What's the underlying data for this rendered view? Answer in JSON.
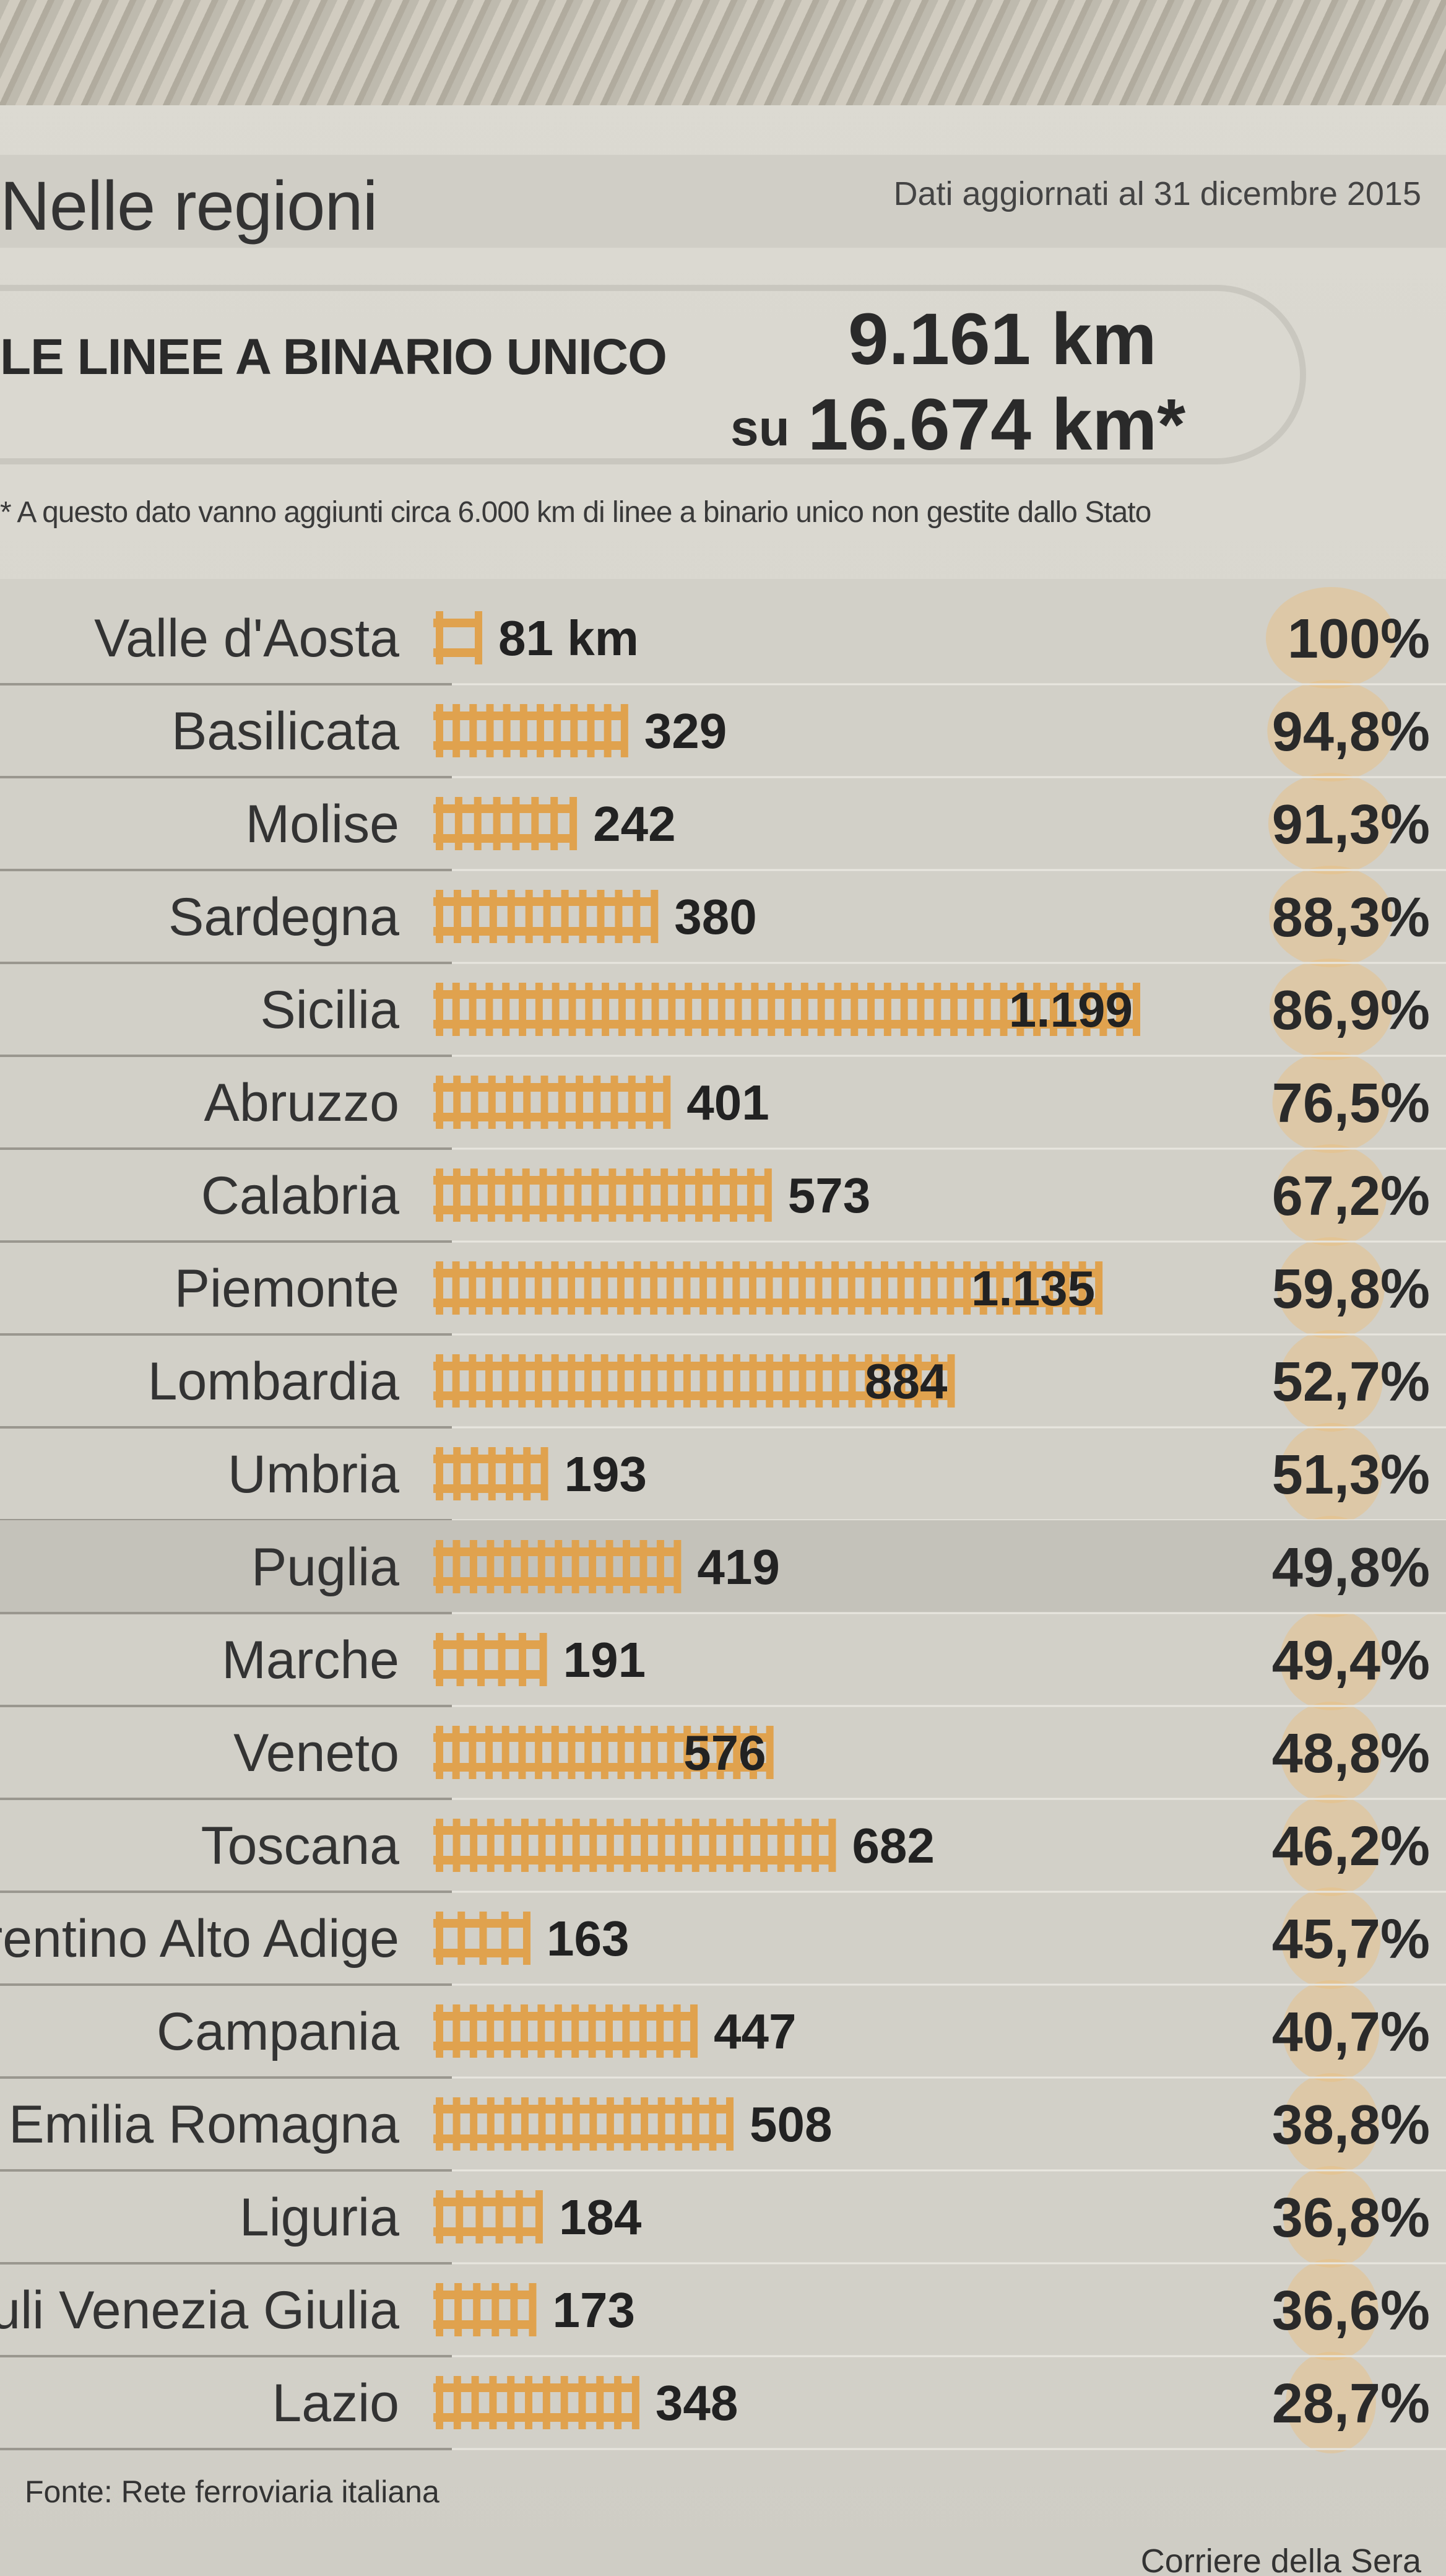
{
  "header": {
    "title": "Nelle regioni",
    "date_note": "Dati aggiornati al 31 dicembre 2015"
  },
  "summary": {
    "label": "LE LINEE A BINARIO UNICO",
    "value": "9.161 km",
    "total_prefix": "su",
    "total": "16.674 km*",
    "footnote": "* A questo dato vanno aggiunti circa 6.000 km di linee a binario unico non gestite dallo Stato"
  },
  "chart_data": {
    "type": "bar",
    "categories": [
      "Valle d'Aosta",
      "Basilicata",
      "Molise",
      "Sardegna",
      "Sicilia",
      "Abruzzo",
      "Calabria",
      "Piemonte",
      "Lombardia",
      "Umbria",
      "Puglia",
      "Marche",
      "Veneto",
      "Toscana",
      "Trentino Alto Adige",
      "Campania",
      "Emilia Romagna",
      "Liguria",
      "Friuli Venezia Giulia",
      "Lazio"
    ],
    "value_labels": [
      "81 km",
      "329",
      "242",
      "380",
      "1.199",
      "401",
      "573",
      "1.135",
      "884",
      "193",
      "419",
      "191",
      "576",
      "682",
      "163",
      "447",
      "508",
      "184",
      "173",
      "348"
    ],
    "series": [
      {
        "values": [
          81,
          329,
          242,
          380,
          1199,
          401,
          573,
          1135,
          884,
          193,
          419,
          191,
          576,
          682,
          163,
          447,
          508,
          184,
          173,
          348
        ]
      },
      {
        "values": [
          100,
          94.8,
          91.3,
          88.3,
          86.9,
          76.5,
          67.2,
          59.8,
          52.7,
          51.3,
          49.8,
          49.4,
          48.8,
          46.2,
          45.7,
          40.7,
          38.8,
          36.8,
          36.6,
          28.7
        ]
      }
    ],
    "percent_labels": [
      "100%",
      "94,8%",
      "91,3%",
      "88,3%",
      "86,9%",
      "76,5%",
      "67,2%",
      "59,8%",
      "52,7%",
      "51,3%",
      "49,8%",
      "49,4%",
      "48,8%",
      "46,2%",
      "45,7%",
      "40,7%",
      "38,8%",
      "36,8%",
      "36,6%",
      "28,7%"
    ],
    "bar_color": "#e0a24e",
    "highlight_color": "#ecbf7e",
    "grid": false
  },
  "footer": {
    "source": "Fonte: Rete ferroviaria italiana",
    "credit": "Corriere della Sera"
  }
}
